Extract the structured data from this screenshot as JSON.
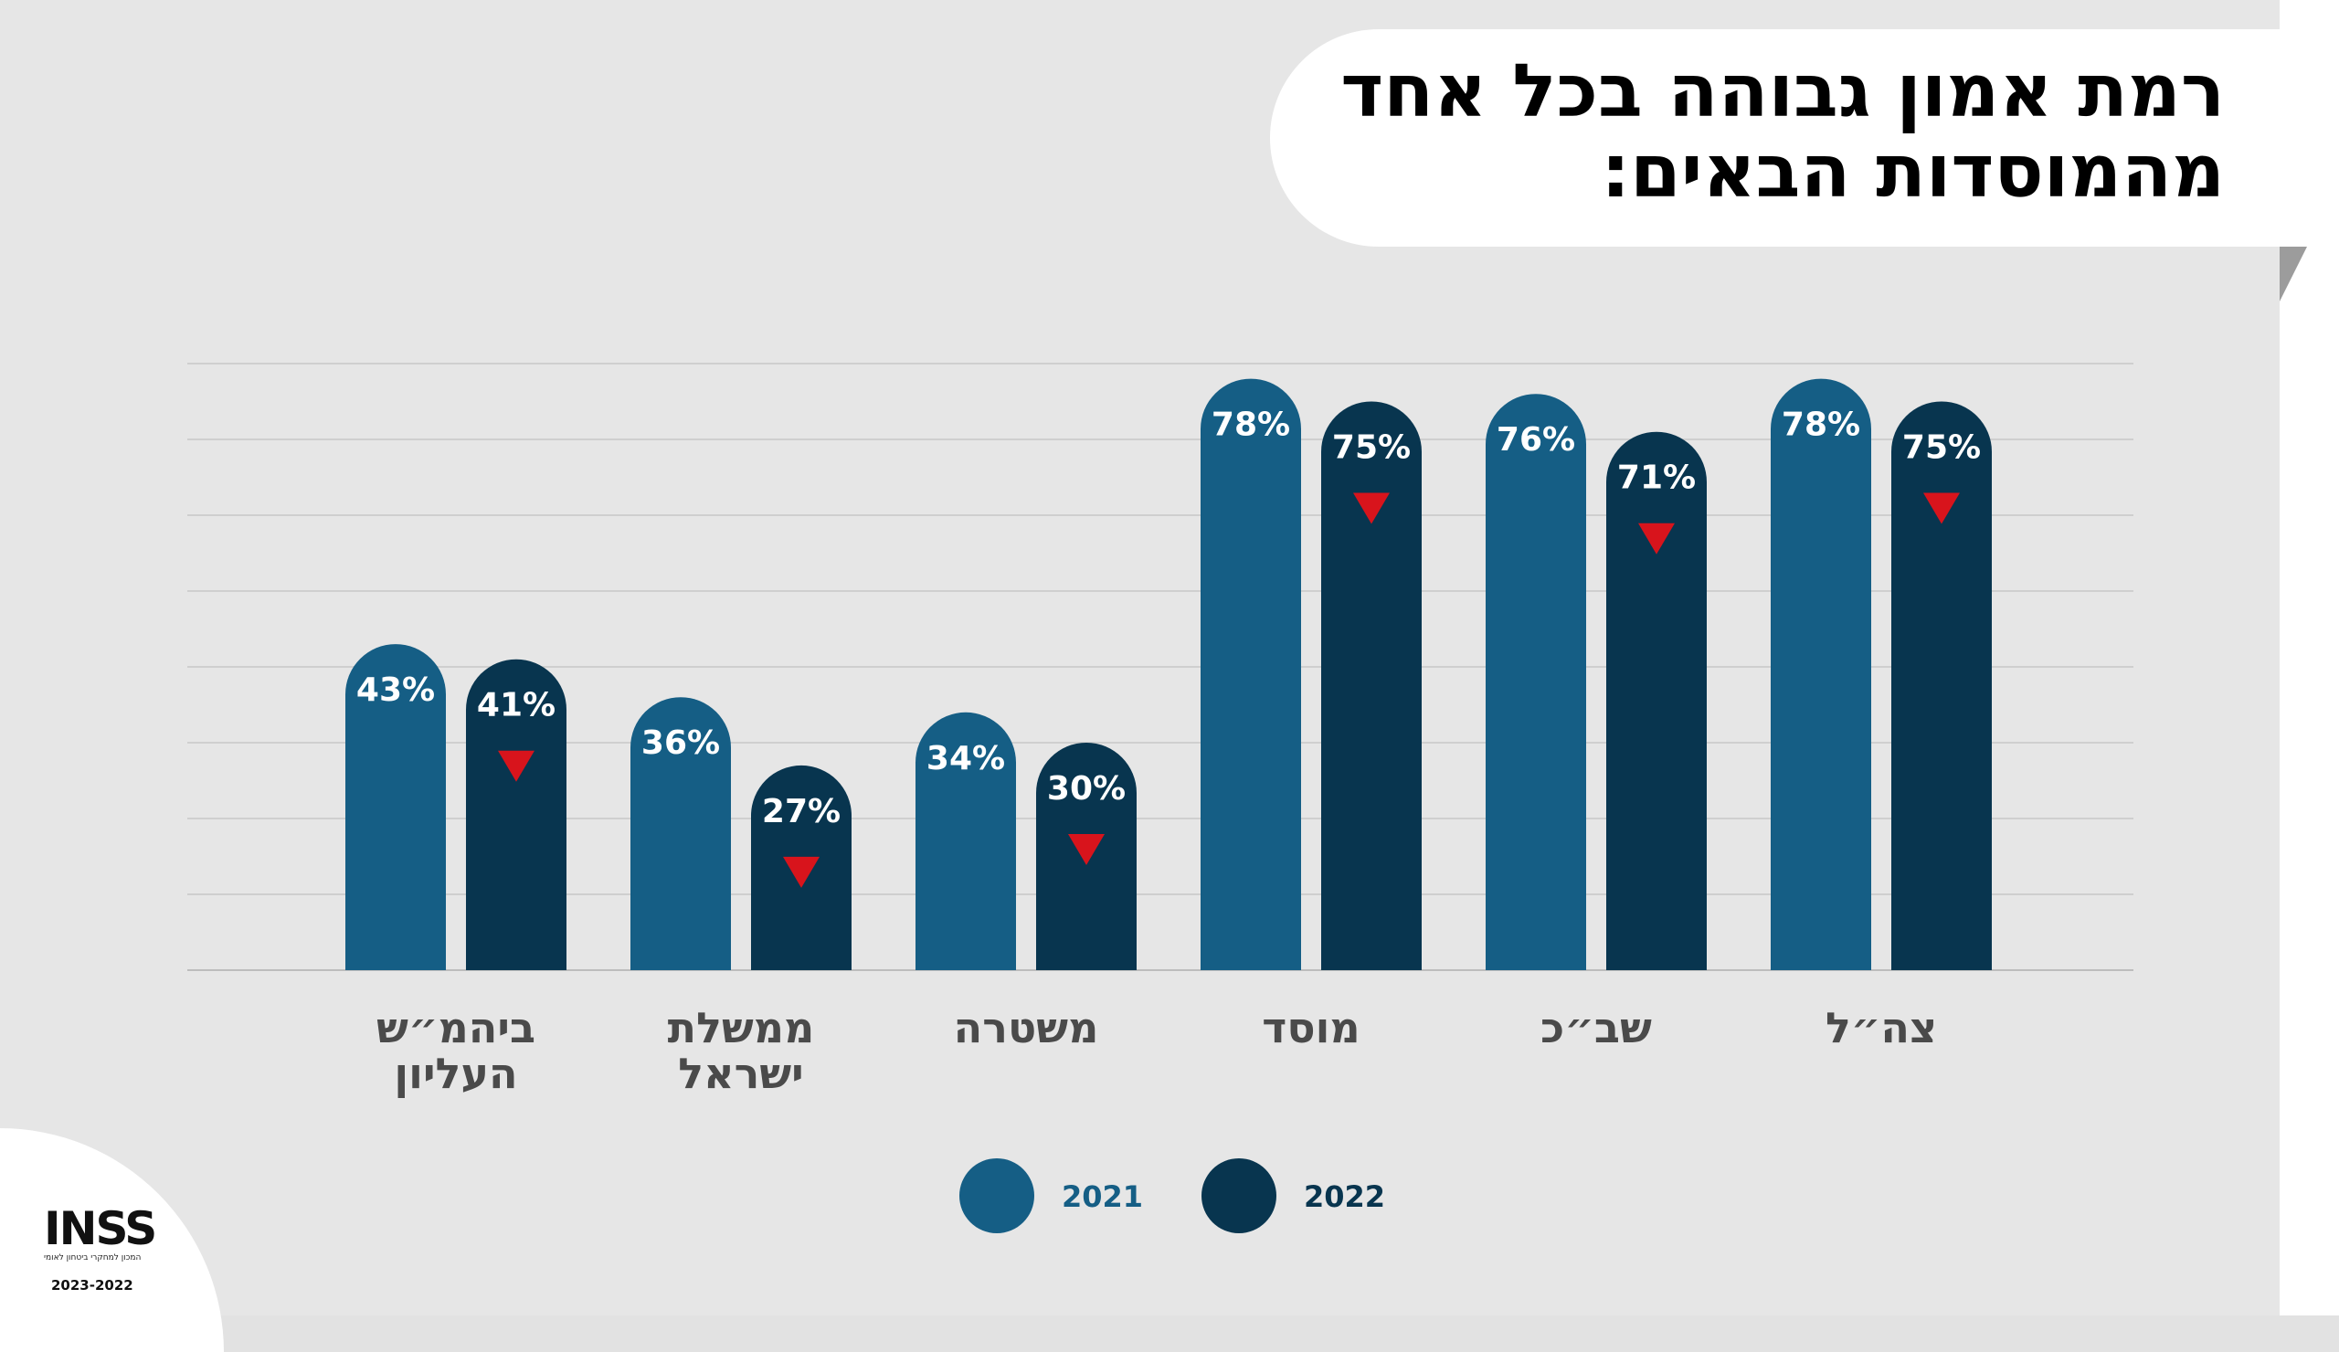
{
  "title": {
    "line1": "רמת אמון גבוהה בכל אחד",
    "line2": "מהמוסדות הבאים:"
  },
  "colors": {
    "series_2021": "#155e85",
    "series_2022": "#08354f",
    "decline_marker": "#d8141c",
    "label_text": "#4a4a4a",
    "gridline": "#cfcfcf"
  },
  "chart_data": {
    "type": "bar",
    "categories": [
      "ביהמ״ש העליון",
      "ממשלת ישראל",
      "משטרה",
      "מוסד",
      "שב״כ",
      "צה״ל"
    ],
    "category_lines": [
      [
        "ביהמ״ש",
        "העליון"
      ],
      [
        "ממשלת",
        "ישראל"
      ],
      [
        "משטרה"
      ],
      [
        "מוסד"
      ],
      [
        "שב״כ"
      ],
      [
        "צה״ל"
      ]
    ],
    "series": [
      {
        "name": "2021",
        "values": [
          43,
          36,
          34,
          78,
          76,
          78
        ],
        "labels": [
          "43%",
          "36%",
          "34%",
          "78%",
          "76%",
          "78%"
        ]
      },
      {
        "name": "2022",
        "values": [
          41,
          27,
          30,
          75,
          71,
          75
        ],
        "labels": [
          "41%",
          "27%",
          "30%",
          "75%",
          "71%",
          "75%"
        ]
      }
    ],
    "decline_marker_series": "2022",
    "ylim": [
      0,
      80
    ],
    "grid": true,
    "legend_position": "bottom-center",
    "xlabel": "",
    "ylabel": ""
  },
  "legend": [
    {
      "label": "2021",
      "color": "#155e85"
    },
    {
      "label": "2022",
      "color": "#08354f"
    }
  ],
  "logo": {
    "name": "INSS",
    "subtitle": "המכון למחקרי ביטחון לאומי",
    "years": "2023-2022"
  }
}
